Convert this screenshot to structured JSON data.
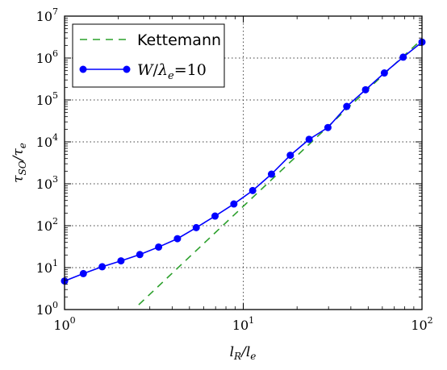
{
  "chart_data": {
    "type": "line",
    "xscale": "log",
    "yscale": "log",
    "xlim": [
      1,
      100
    ],
    "ylim": [
      1,
      10000000
    ],
    "grid": "dotted, at decades",
    "legend_position": "top-left",
    "xlabel": {
      "base": "l",
      "sub": "R",
      "mid": "/l",
      "sub2": "e"
    },
    "ylabel": {
      "base": "τ",
      "sub": "SO",
      "mid": "/τ",
      "sub2": "e"
    },
    "x_ticks": [
      {
        "value": 1,
        "base": "10",
        "exp": "0"
      },
      {
        "value": 10,
        "base": "10",
        "exp": "1"
      },
      {
        "value": 100,
        "base": "10",
        "exp": "2"
      }
    ],
    "y_ticks": [
      {
        "value": 1,
        "base": "10",
        "exp": "0"
      },
      {
        "value": 10,
        "base": "10",
        "exp": "1"
      },
      {
        "value": 100,
        "base": "10",
        "exp": "2"
      },
      {
        "value": 1000,
        "base": "10",
        "exp": "3"
      },
      {
        "value": 10000,
        "base": "10",
        "exp": "4"
      },
      {
        "value": 100000,
        "base": "10",
        "exp": "5"
      },
      {
        "value": 1000000,
        "base": "10",
        "exp": "6"
      },
      {
        "value": 10000000,
        "base": "10",
        "exp": "7"
      }
    ],
    "series": [
      {
        "name": "Kettemann",
        "style": "dashed",
        "color": "#2ca02c",
        "x": [
          2.6,
          5,
          10,
          20,
          40,
          70,
          100
        ],
        "y": [
          1.3,
          18,
          290,
          4700,
          75000,
          700000,
          2800000
        ]
      },
      {
        "name_parts": {
          "w": "W",
          "slash": "/",
          "lam": "λ",
          "sub": "e",
          "eq": "=10"
        },
        "style": "solid-with-markers",
        "color": "#0000ff",
        "x": [
          1,
          1.274,
          1.624,
          2.069,
          2.637,
          3.36,
          4.281,
          5.456,
          6.952,
          8.859,
          11.29,
          14.38,
          18.33,
          23.36,
          29.76,
          37.93,
          48.33,
          61.58,
          78.48,
          100
        ],
        "y": [
          4.8,
          7.2,
          10.5,
          14.5,
          20.5,
          31,
          49,
          90,
          170,
          330,
          690,
          1700,
          4800,
          11500,
          22000,
          70000,
          175000,
          440000,
          1050000,
          2400000
        ]
      }
    ]
  }
}
